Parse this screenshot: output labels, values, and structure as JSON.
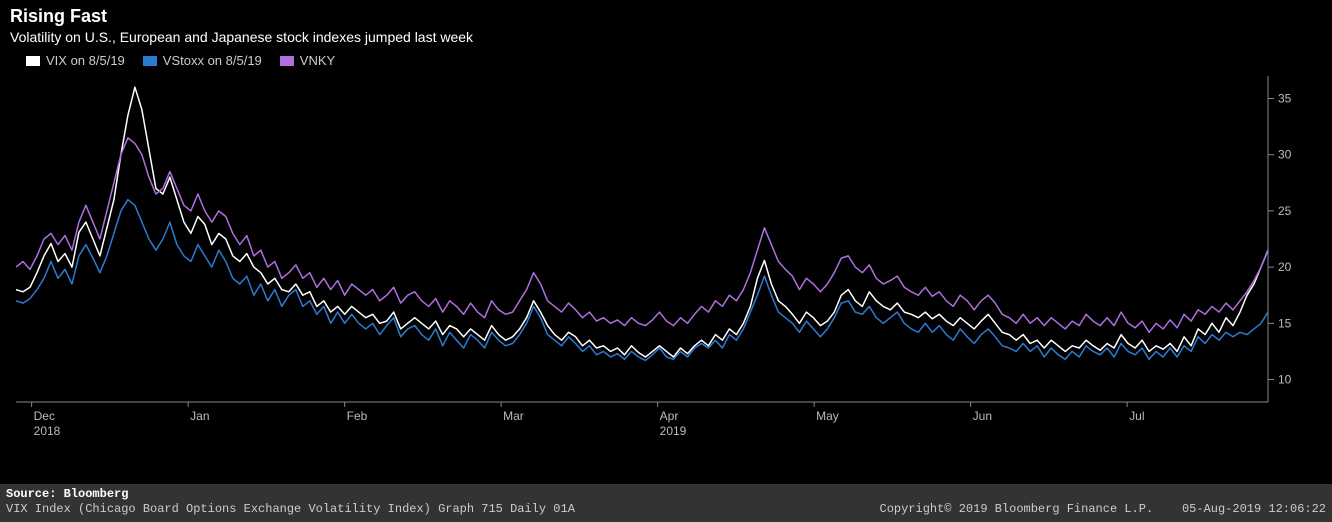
{
  "header": {
    "title": "Rising Fast",
    "subtitle": "Volatility on U.S., European and Japanese stock indexes jumped last week"
  },
  "legend": {
    "items": [
      {
        "label": "VIX on 8/5/19",
        "color": "#ffffff"
      },
      {
        "label": "VStoxx on 8/5/19",
        "color": "#2b7bd1"
      },
      {
        "label": "VNKY",
        "color": "#b06ee0"
      }
    ]
  },
  "chart": {
    "type": "line",
    "background_color": "#000000",
    "axis_color": "#888888",
    "tick_color": "#bbbbbb",
    "tick_fontsize": 12,
    "line_width": 1.5,
    "ylim": [
      8,
      37
    ],
    "yticks": [
      10,
      15,
      20,
      25,
      30,
      35
    ],
    "x_months": [
      "Dec",
      "Jan",
      "Feb",
      "Mar",
      "Apr",
      "May",
      "Jun",
      "Jul"
    ],
    "x_month_year_labels": {
      "Dec": "2018",
      "Apr": "2019"
    },
    "n_points": 178,
    "series": [
      {
        "name": "VIX",
        "color": "#ffffff",
        "values": [
          18.0,
          17.8,
          18.2,
          19.5,
          21.0,
          22.1,
          20.5,
          21.2,
          20.0,
          23.1,
          24.0,
          22.5,
          21.0,
          23.5,
          26.0,
          30.0,
          33.5,
          36.0,
          34.0,
          30.5,
          27.0,
          26.5,
          28.0,
          26.0,
          24.0,
          23.0,
          24.5,
          23.8,
          22.0,
          23.0,
          22.5,
          21.0,
          20.5,
          21.2,
          20.0,
          19.5,
          18.5,
          19.0,
          18.0,
          17.8,
          18.5,
          17.5,
          17.8,
          16.5,
          17.0,
          16.0,
          16.5,
          15.8,
          16.5,
          16.0,
          15.5,
          15.8,
          15.0,
          15.2,
          16.0,
          14.5,
          15.0,
          15.5,
          15.0,
          14.5,
          15.2,
          14.0,
          14.8,
          14.5,
          13.8,
          14.5,
          14.0,
          13.5,
          14.8,
          14.0,
          13.5,
          13.8,
          14.5,
          15.5,
          17.0,
          16.0,
          14.8,
          14.0,
          13.5,
          14.2,
          13.8,
          13.0,
          13.5,
          12.8,
          13.0,
          12.5,
          12.8,
          12.2,
          13.0,
          12.4,
          12.0,
          12.5,
          13.0,
          12.5,
          12.0,
          12.8,
          12.3,
          13.0,
          13.5,
          13.0,
          14.0,
          13.5,
          14.5,
          14.0,
          15.0,
          16.5,
          19.0,
          20.6,
          18.5,
          17.0,
          16.5,
          15.8,
          15.0,
          16.0,
          15.5,
          14.8,
          15.2,
          16.0,
          17.5,
          18.0,
          17.0,
          16.5,
          17.8,
          17.0,
          16.5,
          16.2,
          16.8,
          16.0,
          15.8,
          15.5,
          16.0,
          15.4,
          15.8,
          15.2,
          14.8,
          15.5,
          15.0,
          14.5,
          15.2,
          15.8,
          15.0,
          14.2,
          14.0,
          13.5,
          14.0,
          13.2,
          13.5,
          12.8,
          13.5,
          13.0,
          12.5,
          13.0,
          12.8,
          13.5,
          13.0,
          12.6,
          13.2,
          12.8,
          14.0,
          13.2,
          12.8,
          13.5,
          12.5,
          13.0,
          12.7,
          13.2,
          12.5,
          13.8,
          13.0,
          14.5,
          14.0,
          15.0,
          14.2,
          15.5,
          14.8,
          16.0,
          17.5,
          18.5,
          20.0,
          21.5
        ]
      },
      {
        "name": "VStoxx",
        "color": "#2b7bd1",
        "values": [
          17.0,
          16.8,
          17.2,
          18.0,
          19.0,
          20.5,
          19.0,
          19.8,
          18.5,
          21.0,
          22.0,
          20.8,
          19.5,
          21.0,
          23.0,
          25.0,
          26.0,
          25.5,
          24.0,
          22.5,
          21.5,
          22.5,
          24.0,
          22.0,
          21.0,
          20.5,
          22.0,
          21.0,
          20.0,
          21.5,
          20.5,
          19.0,
          18.5,
          19.2,
          17.5,
          18.5,
          17.0,
          18.0,
          16.5,
          17.5,
          18.0,
          16.5,
          17.0,
          15.8,
          16.5,
          15.0,
          16.0,
          15.0,
          15.8,
          15.0,
          14.5,
          15.0,
          14.0,
          14.8,
          15.5,
          13.8,
          14.5,
          14.8,
          14.0,
          13.5,
          14.5,
          13.0,
          14.2,
          13.5,
          12.8,
          14.0,
          13.5,
          12.8,
          14.2,
          13.5,
          13.0,
          13.2,
          14.0,
          15.0,
          16.5,
          15.5,
          14.0,
          13.5,
          13.0,
          13.8,
          13.2,
          12.5,
          13.0,
          12.2,
          12.5,
          12.0,
          12.3,
          11.8,
          12.5,
          12.0,
          11.7,
          12.2,
          12.8,
          12.0,
          11.8,
          12.5,
          12.0,
          12.8,
          13.2,
          12.8,
          13.5,
          12.8,
          14.0,
          13.5,
          14.5,
          16.0,
          17.5,
          19.2,
          17.5,
          16.0,
          15.5,
          15.0,
          14.2,
          15.2,
          14.5,
          13.8,
          14.5,
          15.5,
          16.8,
          17.0,
          16.0,
          15.8,
          16.5,
          15.5,
          15.0,
          15.5,
          16.0,
          15.0,
          14.5,
          14.2,
          15.0,
          14.2,
          14.8,
          14.0,
          13.5,
          14.5,
          13.8,
          13.2,
          14.0,
          14.5,
          13.8,
          13.0,
          12.8,
          12.5,
          13.2,
          12.5,
          13.0,
          12.0,
          12.8,
          12.2,
          11.8,
          12.5,
          12.0,
          13.0,
          12.5,
          12.2,
          12.8,
          12.0,
          13.2,
          12.5,
          12.2,
          12.8,
          11.8,
          12.5,
          12.0,
          12.8,
          12.0,
          13.0,
          12.5,
          13.8,
          13.2,
          14.0,
          13.5,
          14.2,
          13.8,
          14.2,
          14.0,
          14.5,
          15.0,
          16.0
        ]
      },
      {
        "name": "VNKY",
        "color": "#b06ee0",
        "values": [
          20.0,
          20.5,
          19.8,
          21.0,
          22.5,
          23.0,
          22.0,
          22.8,
          21.5,
          24.0,
          25.5,
          24.0,
          22.5,
          25.0,
          27.5,
          30.0,
          31.5,
          31.0,
          30.0,
          28.0,
          26.5,
          27.0,
          28.5,
          27.0,
          25.5,
          25.0,
          26.5,
          25.0,
          24.0,
          25.0,
          24.5,
          23.0,
          22.0,
          22.8,
          21.0,
          21.5,
          20.0,
          20.5,
          19.0,
          19.5,
          20.2,
          19.0,
          19.5,
          18.2,
          19.0,
          18.0,
          18.8,
          17.5,
          18.5,
          18.0,
          17.5,
          18.0,
          17.0,
          17.5,
          18.2,
          16.8,
          17.5,
          17.8,
          17.0,
          16.5,
          17.2,
          16.0,
          17.0,
          16.5,
          15.8,
          16.8,
          16.0,
          15.5,
          17.0,
          16.2,
          15.8,
          16.0,
          17.0,
          18.0,
          19.5,
          18.5,
          17.0,
          16.5,
          16.0,
          16.8,
          16.2,
          15.5,
          16.0,
          15.2,
          15.5,
          15.0,
          15.3,
          14.8,
          15.5,
          15.0,
          14.8,
          15.3,
          16.0,
          15.2,
          14.8,
          15.5,
          15.0,
          15.8,
          16.5,
          16.0,
          17.0,
          16.5,
          17.5,
          17.0,
          18.0,
          19.5,
          21.5,
          23.5,
          22.0,
          20.5,
          19.8,
          19.2,
          18.0,
          19.0,
          18.5,
          17.8,
          18.5,
          19.5,
          20.8,
          21.0,
          20.0,
          19.5,
          20.2,
          19.0,
          18.5,
          18.8,
          19.2,
          18.2,
          17.8,
          17.5,
          18.2,
          17.4,
          17.8,
          17.0,
          16.5,
          17.5,
          17.0,
          16.2,
          17.0,
          17.5,
          16.8,
          15.8,
          15.5,
          15.0,
          15.8,
          15.0,
          15.5,
          14.8,
          15.5,
          15.0,
          14.5,
          15.2,
          14.8,
          15.8,
          15.2,
          14.8,
          15.5,
          14.8,
          16.0,
          15.0,
          14.6,
          15.2,
          14.2,
          15.0,
          14.5,
          15.3,
          14.6,
          15.8,
          15.2,
          16.2,
          15.8,
          16.5,
          16.0,
          16.8,
          16.2,
          17.0,
          17.8,
          18.8,
          20.0,
          21.5
        ]
      }
    ]
  },
  "footer": {
    "source_label": "Source:",
    "source_value": "Bloomberg",
    "desc": "VIX Index (Chicago Board Options Exchange Volatility Index) Graph 715  Daily 01A",
    "copyright": "Copyright© 2019 Bloomberg Finance L.P.",
    "timestamp": "05-Aug-2019 12:06:22"
  }
}
